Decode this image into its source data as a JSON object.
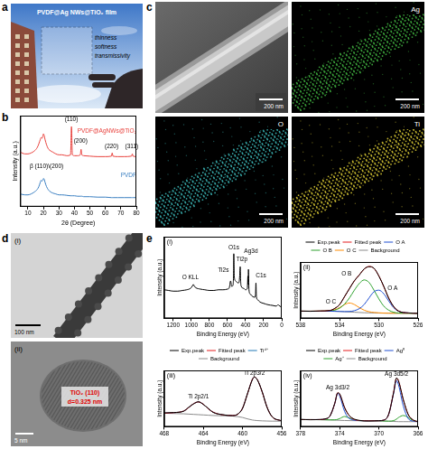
{
  "figure": {
    "panel_a": {
      "letter": "a",
      "title": "PVDF@Ag NWs@TiO₂ film",
      "labels": [
        "thinness",
        "softness",
        "transmissivity"
      ]
    },
    "panel_b": {
      "letter": "b"
    },
    "panel_c": {
      "letter": "c",
      "maps": [
        {
          "scale_bar": "200 nm"
        },
        {
          "label": "Ag",
          "color": "#3fae3f",
          "scale_bar": "200 nm"
        },
        {
          "label": "O",
          "color": "#3ab0b0",
          "scale_bar": "200 nm"
        },
        {
          "label": "Ti",
          "color": "#d2c232",
          "scale_bar": "200 nm"
        }
      ]
    },
    "panel_d": {
      "letter": "d",
      "images": [
        {
          "label": "(i)",
          "scale_bar": "100 nm"
        },
        {
          "label": "(ii)",
          "scale_bar": "5 nm",
          "annotations": [
            "TiO₂ (110)",
            "d=0.325 nm"
          ]
        }
      ]
    },
    "panel_e": {
      "letter": "e"
    }
  },
  "chart_data": [
    {
      "type": "line",
      "x_label": "2θ (Degree)",
      "y_label": "Intensity (a.u.)",
      "x": [
        5,
        8,
        10,
        12,
        14,
        16,
        17,
        18,
        18.5,
        19,
        19.5,
        20,
        20.5,
        21,
        22,
        23,
        24,
        26,
        28,
        30,
        32,
        35,
        37.5,
        38.1,
        38.7,
        40,
        42,
        43.8,
        44.3,
        44.8,
        46,
        50,
        55,
        60,
        63.9,
        64.4,
        64.9,
        68,
        72,
        76.9,
        77.4,
        77.9,
        80
      ],
      "series": [
        {
          "name": "PVDF@AgNWs@TiO₂",
          "color": "#e8413c",
          "values": [
            60,
            58,
            58,
            59,
            61,
            65,
            69,
            74,
            76,
            75,
            77,
            80,
            78,
            74,
            68,
            64,
            62,
            60,
            58,
            57,
            57,
            56,
            57,
            88,
            57,
            56,
            56,
            57,
            63,
            57,
            56,
            55.5,
            55,
            55,
            55.5,
            59,
            55.5,
            55,
            55,
            55.5,
            58,
            55.5,
            55
          ]
        },
        {
          "name": "PVDF",
          "color": "#3a7fc1",
          "values": [
            14,
            13,
            13,
            14,
            16,
            19,
            22,
            27,
            29,
            28,
            29,
            31,
            30,
            27,
            22,
            19,
            17,
            15,
            14,
            13,
            13,
            12.5,
            12,
            12,
            12,
            12,
            11.5,
            11.5,
            11.5,
            11.5,
            11,
            11,
            10.5,
            10.5,
            10,
            10,
            10,
            10,
            10,
            10,
            10,
            10,
            10
          ]
        }
      ],
      "annotations": [
        {
          "text": "β (110)\\(200)",
          "x": 22,
          "y": 44
        },
        {
          "text": "(110)",
          "x": 38,
          "y": 96
        },
        {
          "text": "(200)",
          "x": 44,
          "y": 72
        },
        {
          "text": "(220)",
          "x": 64,
          "y": 66
        },
        {
          "text": "(311)",
          "x": 77,
          "y": 66
        }
      ],
      "xlim": [
        5,
        80
      ],
      "xticks": [
        10,
        20,
        30,
        40,
        50,
        60,
        70,
        80
      ],
      "ylim": [
        0,
        100
      ],
      "yticks": [],
      "tick_labels": "x",
      "grid": false
    },
    {
      "type": "line",
      "label": "(i)",
      "x_label": "Binding Energy (eV)",
      "y_label": "Intensity (a.u.)",
      "x": [
        1300,
        1250,
        1200,
        1150,
        1100,
        1050,
        1010,
        990,
        978,
        965,
        950,
        900,
        850,
        800,
        750,
        700,
        650,
        600,
        580,
        565,
        560,
        555,
        540,
        532,
        530,
        525,
        510,
        480,
        470,
        465,
        459,
        455,
        450,
        420,
        400,
        380,
        374,
        371,
        368,
        362,
        350,
        320,
        300,
        290,
        285,
        280,
        270,
        240,
        200,
        150,
        100,
        60,
        40,
        30,
        20,
        10,
        0
      ],
      "series": [
        {
          "color": "#000000",
          "values": [
            42,
            41,
            40,
            40,
            41,
            42,
            44,
            47,
            50,
            47,
            45,
            43,
            42,
            41,
            41,
            42,
            42,
            43,
            45,
            55,
            52,
            47,
            48,
            70,
            95,
            62,
            55,
            52,
            54,
            62,
            76,
            58,
            48,
            44,
            42,
            44,
            62,
            50,
            72,
            42,
            36,
            32,
            31,
            34,
            52,
            32,
            28,
            24,
            22,
            20,
            19,
            18,
            20,
            19,
            18,
            17,
            16
          ]
        }
      ],
      "annotations": [
        {
          "text": "O KLL",
          "x": 1010,
          "y": 60
        },
        {
          "text": "Ti2s",
          "x": 645,
          "y": 70
        },
        {
          "text": "O1s",
          "x": 530,
          "y": 104
        },
        {
          "text": "Ti2p",
          "x": 440,
          "y": 86
        },
        {
          "text": "Ag3d",
          "x": 340,
          "y": 98
        },
        {
          "text": "C1s",
          "x": 230,
          "y": 62
        }
      ],
      "xlim": [
        1300,
        0
      ],
      "xticks": [
        1200,
        1000,
        800,
        600,
        400,
        200,
        0
      ],
      "ylim": [
        0,
        120
      ],
      "yticks": [],
      "tick_labels": "x",
      "grid": false
    },
    {
      "type": "line",
      "label": "(ii)",
      "x_label": "Binding Energy (eV)",
      "y_label": "Intensity (a.u.)",
      "x": [
        538,
        537,
        536,
        535,
        534.5,
        534,
        533.5,
        533,
        532.5,
        532,
        531.5,
        531,
        530.5,
        530,
        529.5,
        529,
        528.5,
        528,
        527,
        526
      ],
      "series": [
        {
          "name": "Exp.peak",
          "color": "#000000",
          "values": [
            14.3,
            13.8,
            14.5,
            15.2,
            19.6,
            27.0,
            42.8,
            58.0,
            73.6,
            84.5,
            96.5,
            100.8,
            97.9,
            82.4,
            62.5,
            39.4,
            23.5,
            14.2,
            10.7,
            9.8
          ]
        },
        {
          "name": "Fitted peak",
          "color": "#e41a1c",
          "values": [
            14,
            14,
            14.2,
            15.5,
            19.2,
            27.5,
            42.2,
            58.5,
            73,
            85,
            96,
            101.4,
            97.3,
            83,
            61.9,
            39.9,
            23,
            14.5,
            10.5,
            10
          ]
        },
        {
          "name": "O A",
          "color": "#1f4fd1",
          "values": [
            14,
            14,
            14,
            14,
            13.8,
            13.5,
            13.2,
            13.5,
            15,
            19,
            27,
            40,
            52,
            55,
            48,
            34,
            21,
            14,
            10.5,
            10
          ]
        },
        {
          "name": "O B",
          "color": "#2ca02c",
          "values": [
            14,
            14,
            14,
            14.5,
            16,
            20,
            28,
            40,
            55,
            68,
            75,
            70,
            55,
            38,
            24,
            16,
            12,
            10.5,
            10,
            10
          ]
        },
        {
          "name": "O C",
          "color": "#ff8c00",
          "values": [
            14,
            14,
            14.2,
            15,
            17,
            21,
            27,
            30,
            27,
            21,
            16,
            13,
            11.5,
            10.8,
            10.3,
            10.1,
            10,
            10,
            10,
            10
          ]
        },
        {
          "name": "Background",
          "color": "#8a8a8a",
          "values": [
            14,
            14,
            14,
            14,
            13.8,
            13.5,
            13,
            12.5,
            12,
            11.5,
            11,
            10.8,
            10.6,
            10.4,
            10.2,
            10.1,
            10,
            10,
            10,
            10
          ]
        }
      ],
      "annotations": [
        {
          "text": "O A",
          "x": 528.6,
          "y": 58
        },
        {
          "text": "O B",
          "x": 533.3,
          "y": 86
        },
        {
          "text": "O C",
          "x": 534.9,
          "y": 32
        }
      ],
      "xlim": [
        538,
        526
      ],
      "xticks": [
        538,
        534,
        530,
        526
      ],
      "ylim": [
        0,
        110
      ],
      "yticks": [],
      "tick_labels": "x",
      "grid": false,
      "legend": "top"
    },
    {
      "type": "line",
      "label": "(iii)",
      "x_label": "Binding Energy (eV)",
      "y_label": "Intensity (a.u.)",
      "x": [
        468,
        467,
        466,
        465.5,
        465,
        464.5,
        464,
        463.5,
        463,
        462,
        461,
        460.5,
        460,
        459.5,
        459,
        458.8,
        458.5,
        458,
        457.5,
        457,
        456
      ],
      "series": [
        {
          "name": "Exp.peak",
          "color": "#000000",
          "values": [
            24.6,
            25.3,
            27.6,
            34.6,
            40.5,
            44.4,
            39.5,
            32.6,
            25.5,
            21.4,
            19.6,
            22.5,
            32.4,
            58.6,
            83.4,
            88.5,
            83.6,
            62.6,
            34.5,
            18.4,
            10.2
          ]
        },
        {
          "name": "Fitted peak",
          "color": "#e41a1c",
          "values": [
            24.2,
            25,
            28,
            34,
            41,
            44,
            40,
            32,
            26,
            21,
            20,
            22,
            33,
            58,
            84,
            88,
            84,
            62,
            35,
            18,
            10.5
          ]
        },
        {
          "name": "Ti⁴⁺",
          "color": "#1f77b4",
          "values": [
            24.2,
            25,
            28,
            34,
            41,
            44,
            40,
            32,
            26,
            21,
            20,
            22,
            33,
            58,
            84,
            88,
            84,
            62,
            35,
            18,
            10.5
          ]
        },
        {
          "name": "Background",
          "color": "#8a8a8a",
          "values": [
            24,
            23.5,
            23,
            22.5,
            22,
            21.5,
            21,
            20.5,
            20,
            19.5,
            19,
            18,
            16.5,
            14,
            12,
            11.5,
            11,
            10.5,
            10.2,
            10,
            10
          ]
        }
      ],
      "annotations": [
        {
          "text": "Ti 2p2/1",
          "x": 464.5,
          "y": 54
        },
        {
          "text": "Ti 2p3/2",
          "x": 458.8,
          "y": 95
        }
      ],
      "xlim": [
        468,
        456
      ],
      "xticks": [
        468,
        464,
        460,
        456
      ],
      "ylim": [
        0,
        100
      ],
      "yticks": [],
      "tick_labels": "x",
      "grid": false,
      "legend": "top"
    },
    {
      "type": "line",
      "label": "(iv)",
      "x_label": "Binding Energy (eV)",
      "y_label": "Intensity (a.u.)",
      "x": [
        378,
        377,
        376,
        375.5,
        375,
        374.5,
        374.2,
        374,
        373.5,
        373,
        372,
        371,
        370,
        369.5,
        369,
        368.5,
        368.2,
        368,
        367.5,
        367,
        366.5,
        366
      ],
      "series": [
        {
          "name": "Exp.peak",
          "color": "#000000",
          "values": [
            14.4,
            13.7,
            14.3,
            15.4,
            20.6,
            46.1,
            66.2,
            64.1,
            37.2,
            21.5,
            12.5,
            11.3,
            12.0,
            12.8,
            24.8,
            66.5,
            95.3,
            89.4,
            52.6,
            23.5,
            13.4,
            9.8
          ]
        },
        {
          "name": "Fitted peak",
          "color": "#e41a1c",
          "values": [
            14,
            14,
            14,
            15,
            21,
            45.5,
            66.7,
            63.5,
            37.8,
            21,
            12.2,
            11.6,
            11.7,
            13,
            24.2,
            67.2,
            94.8,
            90,
            52,
            24,
            13,
            10
          ]
        },
        {
          "name": "Ag⁰",
          "color": "#1f4fd1",
          "values": [
            14,
            14,
            14,
            15,
            21,
            45,
            65,
            60,
            30,
            16,
            12,
            11.6,
            11.7,
            13,
            24,
            65,
            90,
            82,
            40,
            16,
            11,
            10
          ]
        },
        {
          "name": "Ag⁺",
          "color": "#2ca02c",
          "values": [
            14,
            14,
            13.8,
            13.6,
            13.4,
            13.5,
            14.5,
            16,
            20,
            17,
            12,
            11.6,
            11.5,
            11.2,
            11,
            12,
            15,
            18,
            22,
            18,
            12,
            10
          ]
        },
        {
          "name": "Background",
          "color": "#8a8a8a",
          "values": [
            14,
            14,
            13.8,
            13.6,
            13.4,
            13,
            12.8,
            12.5,
            12.2,
            12,
            11.8,
            11.6,
            11.5,
            11.2,
            10.8,
            10.4,
            10.2,
            10,
            10,
            10,
            10,
            10
          ]
        }
      ],
      "annotations": [
        {
          "text": "Ag 3d3/2",
          "x": 374.2,
          "y": 76
        },
        {
          "text": "Ag 3d5/2",
          "x": 368.2,
          "y": 103
        }
      ],
      "xlim": [
        378,
        366
      ],
      "xticks": [
        378,
        374,
        370,
        366
      ],
      "ylim": [
        0,
        110
      ],
      "yticks": [],
      "tick_labels": "x",
      "grid": false,
      "legend": "top"
    }
  ]
}
